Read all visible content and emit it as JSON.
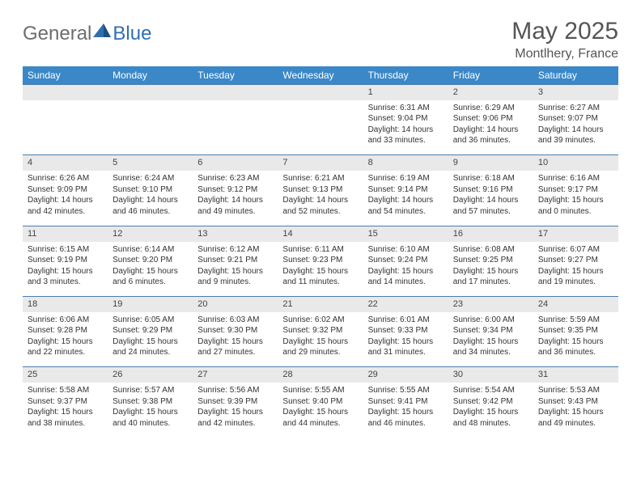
{
  "brand": {
    "part1": "General",
    "part2": "Blue"
  },
  "title": "May 2025",
  "subtitle": "Montlhery, France",
  "colors": {
    "header_bg": "#3b88c8",
    "header_text": "#ffffff",
    "daynum_bg": "#e9e9e9",
    "row_divider": "#4a7db0",
    "body_text": "#333333",
    "title_text": "#555555",
    "logo_gray": "#6d6d6d",
    "logo_blue": "#2f6fb0"
  },
  "day_headers": [
    "Sunday",
    "Monday",
    "Tuesday",
    "Wednesday",
    "Thursday",
    "Friday",
    "Saturday"
  ],
  "weeks": [
    [
      null,
      null,
      null,
      null,
      {
        "n": "1",
        "sr": "Sunrise: 6:31 AM",
        "ss": "Sunset: 9:04 PM",
        "d1": "Daylight: 14 hours",
        "d2": "and 33 minutes."
      },
      {
        "n": "2",
        "sr": "Sunrise: 6:29 AM",
        "ss": "Sunset: 9:06 PM",
        "d1": "Daylight: 14 hours",
        "d2": "and 36 minutes."
      },
      {
        "n": "3",
        "sr": "Sunrise: 6:27 AM",
        "ss": "Sunset: 9:07 PM",
        "d1": "Daylight: 14 hours",
        "d2": "and 39 minutes."
      }
    ],
    [
      {
        "n": "4",
        "sr": "Sunrise: 6:26 AM",
        "ss": "Sunset: 9:09 PM",
        "d1": "Daylight: 14 hours",
        "d2": "and 42 minutes."
      },
      {
        "n": "5",
        "sr": "Sunrise: 6:24 AM",
        "ss": "Sunset: 9:10 PM",
        "d1": "Daylight: 14 hours",
        "d2": "and 46 minutes."
      },
      {
        "n": "6",
        "sr": "Sunrise: 6:23 AM",
        "ss": "Sunset: 9:12 PM",
        "d1": "Daylight: 14 hours",
        "d2": "and 49 minutes."
      },
      {
        "n": "7",
        "sr": "Sunrise: 6:21 AM",
        "ss": "Sunset: 9:13 PM",
        "d1": "Daylight: 14 hours",
        "d2": "and 52 minutes."
      },
      {
        "n": "8",
        "sr": "Sunrise: 6:19 AM",
        "ss": "Sunset: 9:14 PM",
        "d1": "Daylight: 14 hours",
        "d2": "and 54 minutes."
      },
      {
        "n": "9",
        "sr": "Sunrise: 6:18 AM",
        "ss": "Sunset: 9:16 PM",
        "d1": "Daylight: 14 hours",
        "d2": "and 57 minutes."
      },
      {
        "n": "10",
        "sr": "Sunrise: 6:16 AM",
        "ss": "Sunset: 9:17 PM",
        "d1": "Daylight: 15 hours",
        "d2": "and 0 minutes."
      }
    ],
    [
      {
        "n": "11",
        "sr": "Sunrise: 6:15 AM",
        "ss": "Sunset: 9:19 PM",
        "d1": "Daylight: 15 hours",
        "d2": "and 3 minutes."
      },
      {
        "n": "12",
        "sr": "Sunrise: 6:14 AM",
        "ss": "Sunset: 9:20 PM",
        "d1": "Daylight: 15 hours",
        "d2": "and 6 minutes."
      },
      {
        "n": "13",
        "sr": "Sunrise: 6:12 AM",
        "ss": "Sunset: 9:21 PM",
        "d1": "Daylight: 15 hours",
        "d2": "and 9 minutes."
      },
      {
        "n": "14",
        "sr": "Sunrise: 6:11 AM",
        "ss": "Sunset: 9:23 PM",
        "d1": "Daylight: 15 hours",
        "d2": "and 11 minutes."
      },
      {
        "n": "15",
        "sr": "Sunrise: 6:10 AM",
        "ss": "Sunset: 9:24 PM",
        "d1": "Daylight: 15 hours",
        "d2": "and 14 minutes."
      },
      {
        "n": "16",
        "sr": "Sunrise: 6:08 AM",
        "ss": "Sunset: 9:25 PM",
        "d1": "Daylight: 15 hours",
        "d2": "and 17 minutes."
      },
      {
        "n": "17",
        "sr": "Sunrise: 6:07 AM",
        "ss": "Sunset: 9:27 PM",
        "d1": "Daylight: 15 hours",
        "d2": "and 19 minutes."
      }
    ],
    [
      {
        "n": "18",
        "sr": "Sunrise: 6:06 AM",
        "ss": "Sunset: 9:28 PM",
        "d1": "Daylight: 15 hours",
        "d2": "and 22 minutes."
      },
      {
        "n": "19",
        "sr": "Sunrise: 6:05 AM",
        "ss": "Sunset: 9:29 PM",
        "d1": "Daylight: 15 hours",
        "d2": "and 24 minutes."
      },
      {
        "n": "20",
        "sr": "Sunrise: 6:03 AM",
        "ss": "Sunset: 9:30 PM",
        "d1": "Daylight: 15 hours",
        "d2": "and 27 minutes."
      },
      {
        "n": "21",
        "sr": "Sunrise: 6:02 AM",
        "ss": "Sunset: 9:32 PM",
        "d1": "Daylight: 15 hours",
        "d2": "and 29 minutes."
      },
      {
        "n": "22",
        "sr": "Sunrise: 6:01 AM",
        "ss": "Sunset: 9:33 PM",
        "d1": "Daylight: 15 hours",
        "d2": "and 31 minutes."
      },
      {
        "n": "23",
        "sr": "Sunrise: 6:00 AM",
        "ss": "Sunset: 9:34 PM",
        "d1": "Daylight: 15 hours",
        "d2": "and 34 minutes."
      },
      {
        "n": "24",
        "sr": "Sunrise: 5:59 AM",
        "ss": "Sunset: 9:35 PM",
        "d1": "Daylight: 15 hours",
        "d2": "and 36 minutes."
      }
    ],
    [
      {
        "n": "25",
        "sr": "Sunrise: 5:58 AM",
        "ss": "Sunset: 9:37 PM",
        "d1": "Daylight: 15 hours",
        "d2": "and 38 minutes."
      },
      {
        "n": "26",
        "sr": "Sunrise: 5:57 AM",
        "ss": "Sunset: 9:38 PM",
        "d1": "Daylight: 15 hours",
        "d2": "and 40 minutes."
      },
      {
        "n": "27",
        "sr": "Sunrise: 5:56 AM",
        "ss": "Sunset: 9:39 PM",
        "d1": "Daylight: 15 hours",
        "d2": "and 42 minutes."
      },
      {
        "n": "28",
        "sr": "Sunrise: 5:55 AM",
        "ss": "Sunset: 9:40 PM",
        "d1": "Daylight: 15 hours",
        "d2": "and 44 minutes."
      },
      {
        "n": "29",
        "sr": "Sunrise: 5:55 AM",
        "ss": "Sunset: 9:41 PM",
        "d1": "Daylight: 15 hours",
        "d2": "and 46 minutes."
      },
      {
        "n": "30",
        "sr": "Sunrise: 5:54 AM",
        "ss": "Sunset: 9:42 PM",
        "d1": "Daylight: 15 hours",
        "d2": "and 48 minutes."
      },
      {
        "n": "31",
        "sr": "Sunrise: 5:53 AM",
        "ss": "Sunset: 9:43 PM",
        "d1": "Daylight: 15 hours",
        "d2": "and 49 minutes."
      }
    ]
  ]
}
